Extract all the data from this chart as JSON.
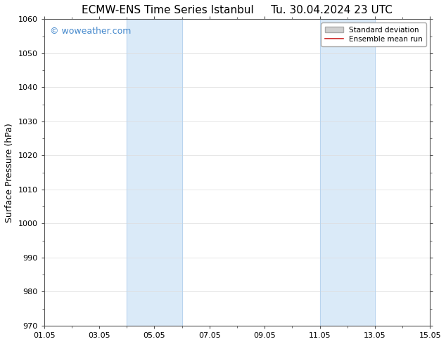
{
  "title": "ECMW-ENS Time Series Istanbul     Tu. 30.04.2024 23 UTC",
  "ylabel": "Surface Pressure (hPa)",
  "ylim": [
    970,
    1060
  ],
  "yticks": [
    970,
    980,
    990,
    1000,
    1010,
    1020,
    1030,
    1040,
    1050,
    1060
  ],
  "xtick_labels": [
    "01.05",
    "03.05",
    "05.05",
    "07.05",
    "09.05",
    "11.05",
    "13.05",
    "15.05"
  ],
  "xtick_positions": [
    0,
    2,
    4,
    6,
    8,
    10,
    12,
    14
  ],
  "xlim": [
    0,
    14
  ],
  "shaded_regions": [
    {
      "start": 3.0,
      "end": 5.0,
      "color": "#daeaf8"
    },
    {
      "start": 10.0,
      "end": 12.0,
      "color": "#daeaf8"
    }
  ],
  "shaded_border_color": "#b8d4ee",
  "watermark": "© woweather.com",
  "watermark_color": "#4488cc",
  "legend_items": [
    {
      "label": "Standard deviation",
      "facecolor": "#d0d0d0",
      "edgecolor": "#aaaaaa",
      "type": "patch"
    },
    {
      "label": "Ensemble mean run",
      "color": "#cc2222",
      "type": "line"
    }
  ],
  "background_color": "#ffffff",
  "grid_color": "#dddddd",
  "title_fontsize": 11,
  "axis_fontsize": 9,
  "tick_fontsize": 8,
  "watermark_fontsize": 9,
  "legend_fontsize": 7.5
}
